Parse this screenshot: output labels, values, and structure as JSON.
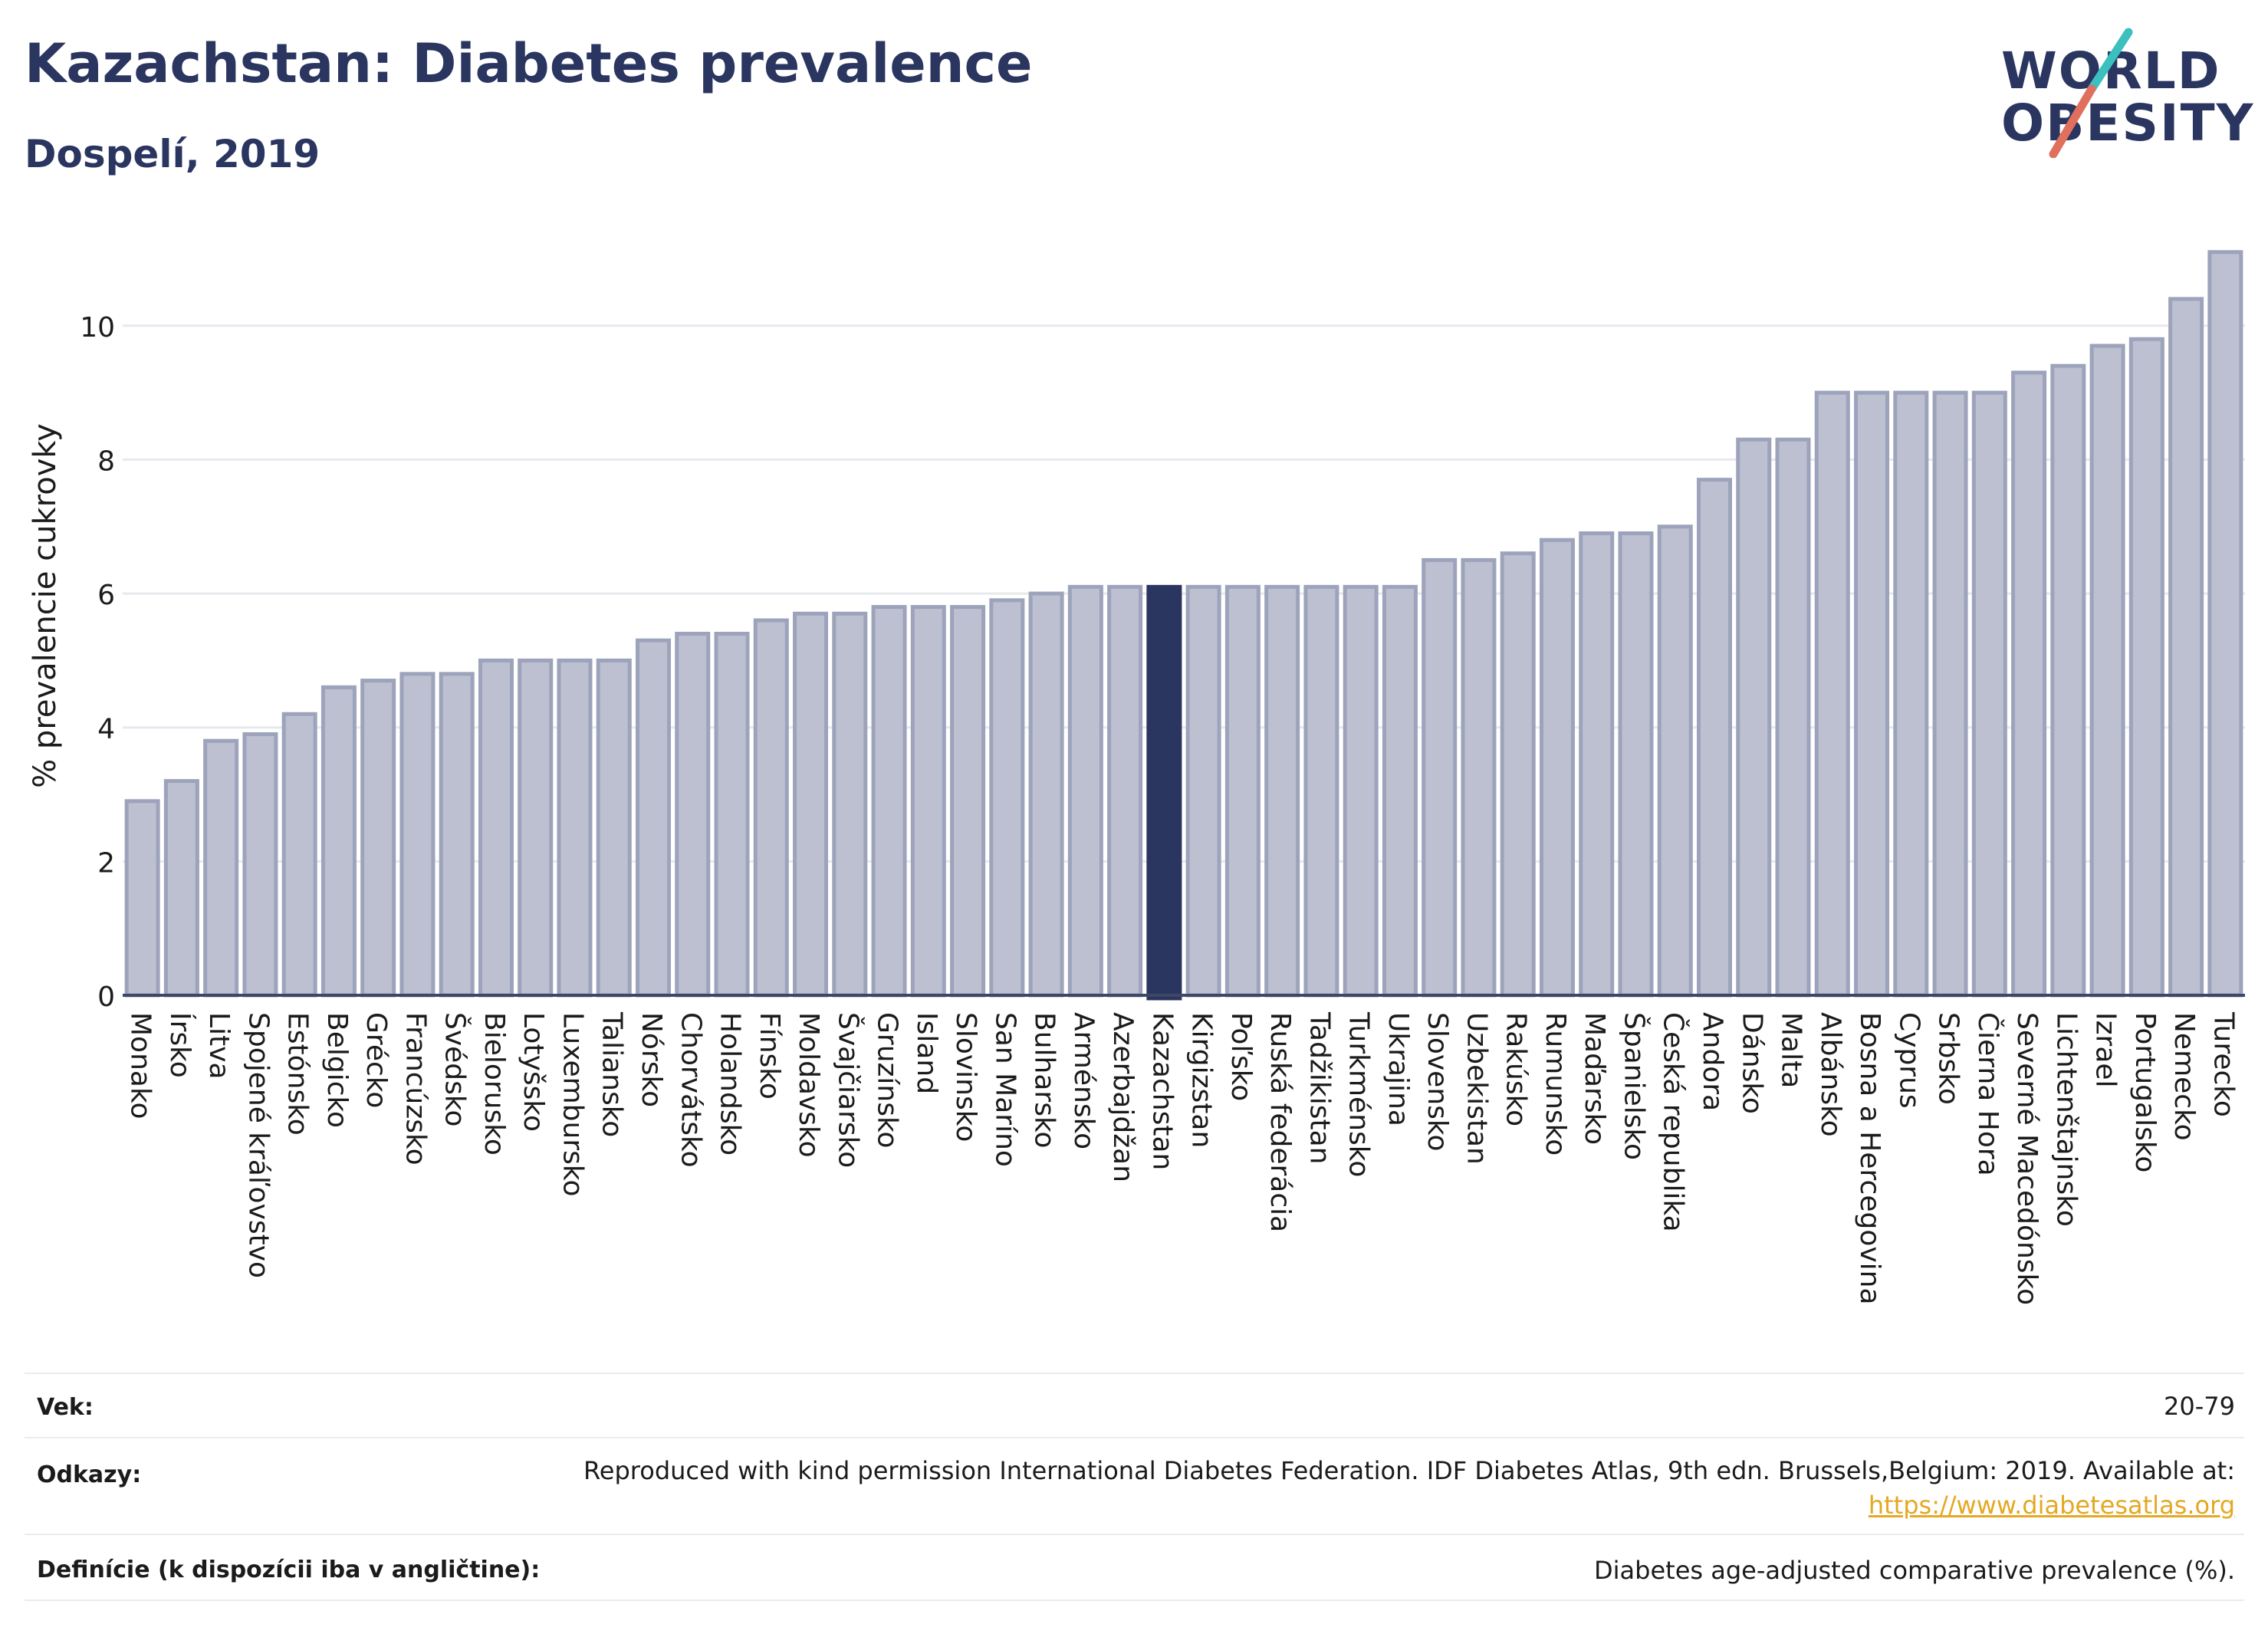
{
  "header": {
    "title": "Kazachstan: Diabetes prevalence",
    "subtitle": "Dospelí, 2019",
    "logo_line1": "WORLD",
    "logo_line2": "OBESITY"
  },
  "colors": {
    "title": "#2a3560",
    "bar": "#bcc0d0",
    "bar_stroke": "#9ca3bb",
    "highlight": "#2a3560",
    "grid": "#e6e9ee",
    "logo_teal": "#3bbfbf",
    "logo_coral": "#e0705d",
    "link": "#e4a823"
  },
  "chart_data": {
    "type": "bar",
    "ylabel": "% prevalencie cukrovky",
    "ylim": [
      0,
      11.2
    ],
    "yticks": [
      0,
      2,
      4,
      6,
      8,
      10
    ],
    "grid": true,
    "highlight": "Kazachstan",
    "categories": [
      "Monako",
      "Írsko",
      "Litva",
      "Spojené kráľovstvo",
      "Estónsko",
      "Belgicko",
      "Grécko",
      "Francúzsko",
      "Švédsko",
      "Bielorusko",
      "Lotyšsko",
      "Luxembursko",
      "Taliansko",
      "Nórsko",
      "Chorvátsko",
      "Holandsko",
      "Fínsko",
      "Moldavsko",
      "Švajčiarsko",
      "Gruzínsko",
      "Island",
      "Slovinsko",
      "San Maríno",
      "Bulharsko",
      "Arménsko",
      "Azerbajdžan",
      "Kazachstan",
      "Kirgizstan",
      "Poľsko",
      "Ruská federácia",
      "Tadžikistan",
      "Turkménsko",
      "Ukrajina",
      "Slovensko",
      "Uzbekistan",
      "Rakúsko",
      "Rumunsko",
      "Maďarsko",
      "Španielsko",
      "Česká republika",
      "Andora",
      "Dánsko",
      "Malta",
      "Albánsko",
      "Bosna a Hercegovina",
      "Cyprus",
      "Srbsko",
      "Čierna Hora",
      "Severné Macedónsko",
      "Lichtenštajnsko",
      "Izrael",
      "Portugalsko",
      "Nemecko",
      "Turecko"
    ],
    "values": [
      2.9,
      3.2,
      3.8,
      3.9,
      4.2,
      4.6,
      4.7,
      4.8,
      4.8,
      5.0,
      5.0,
      5.0,
      5.0,
      5.3,
      5.4,
      5.4,
      5.6,
      5.7,
      5.7,
      5.8,
      5.8,
      5.8,
      5.9,
      6.0,
      6.1,
      6.1,
      6.1,
      6.1,
      6.1,
      6.1,
      6.1,
      6.1,
      6.1,
      6.5,
      6.5,
      6.6,
      6.8,
      6.9,
      6.9,
      7.0,
      7.7,
      8.3,
      8.3,
      9.0,
      9.0,
      9.0,
      9.0,
      9.0,
      9.3,
      9.4,
      9.7,
      9.8,
      10.4,
      11.1
    ]
  },
  "meta": {
    "age_label": "Vek:",
    "age_value": "20-79",
    "refs_label": "Odkazy:",
    "refs_value": "Reproduced with kind permission International Diabetes Federation. IDF Diabetes Atlas, 9th edn. Brussels,Belgium: 2019. Available at:",
    "refs_link": "https://www.diabetesatlas.org",
    "def_label": "Definície (k dispozícii iba v angličtine):",
    "def_value": "Diabetes age-adjusted comparative prevalence (%)."
  }
}
